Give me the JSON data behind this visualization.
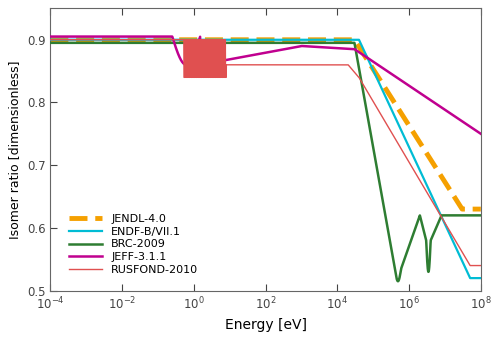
{
  "xlabel": "Energy [eV]",
  "ylabel": "Isomer ratio [dimensionless]",
  "xlim": [
    0.0001,
    100000000.0
  ],
  "ylim": [
    0.5,
    0.95
  ],
  "yticks": [
    0.5,
    0.6,
    0.7,
    0.8,
    0.9
  ],
  "background": "#ffffff",
  "series": {
    "JENDL-4.0": {
      "color": "#f5a000",
      "lw": 3.5,
      "linestyle": "--",
      "zorder": 2
    },
    "ENDF-B/VII.1": {
      "color": "#00bcd4",
      "lw": 1.6,
      "linestyle": "-",
      "zorder": 3
    },
    "BRC-2009": {
      "color": "#2e7d32",
      "lw": 1.8,
      "linestyle": "-",
      "zorder": 4
    },
    "JEFF-3.1.1": {
      "color": "#c0008f",
      "lw": 1.8,
      "linestyle": "-",
      "zorder": 5
    },
    "RUSFOND-2010": {
      "color": "#e05050",
      "lw": 1.0,
      "linestyle": "-",
      "zorder": 6
    }
  }
}
